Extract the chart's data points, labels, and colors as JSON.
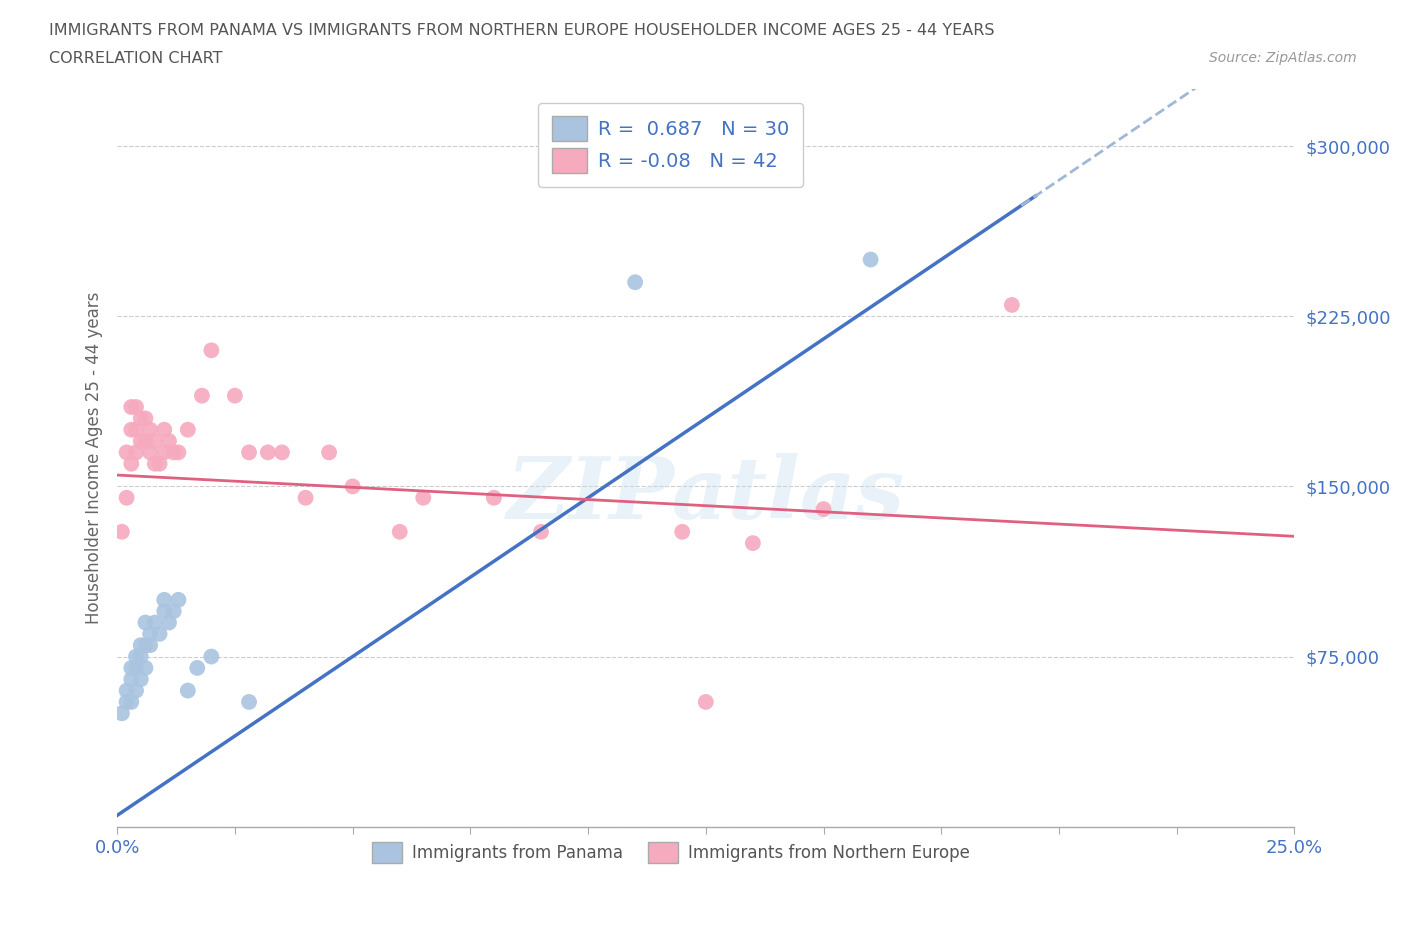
{
  "title_line1": "IMMIGRANTS FROM PANAMA VS IMMIGRANTS FROM NORTHERN EUROPE HOUSEHOLDER INCOME AGES 25 - 44 YEARS",
  "title_line2": "CORRELATION CHART",
  "source_text": "Source: ZipAtlas.com",
  "ylabel": "Householder Income Ages 25 - 44 years",
  "xlim": [
    0.0,
    0.25
  ],
  "ylim": [
    0,
    325000
  ],
  "yticks": [
    0,
    75000,
    150000,
    225000,
    300000
  ],
  "ytick_labels": [
    "",
    "$75,000",
    "$150,000",
    "$225,000",
    "$300,000"
  ],
  "xticks": [
    0.0,
    0.025,
    0.05,
    0.075,
    0.1,
    0.125,
    0.15,
    0.175,
    0.2,
    0.225,
    0.25
  ],
  "xtick_labels": [
    "0.0%",
    "",
    "",
    "",
    "",
    "",
    "",
    "",
    "",
    "",
    "25.0%"
  ],
  "color_panama": "#aac4e0",
  "color_north_europe": "#f5aabe",
  "color_panama_line": "#4472c4",
  "color_north_europe_line": "#e06080",
  "color_trend_ext": "#a0b8d8",
  "R_panama": 0.687,
  "N_panama": 30,
  "R_north_europe": -0.08,
  "N_north_europe": 42,
  "panama_x": [
    0.001,
    0.002,
    0.002,
    0.003,
    0.003,
    0.003,
    0.004,
    0.004,
    0.004,
    0.005,
    0.005,
    0.005,
    0.006,
    0.006,
    0.006,
    0.007,
    0.007,
    0.008,
    0.009,
    0.01,
    0.01,
    0.011,
    0.012,
    0.013,
    0.015,
    0.017,
    0.02,
    0.028,
    0.11,
    0.16
  ],
  "panama_y": [
    50000,
    55000,
    60000,
    55000,
    65000,
    70000,
    60000,
    70000,
    75000,
    65000,
    75000,
    80000,
    70000,
    80000,
    90000,
    80000,
    85000,
    90000,
    85000,
    95000,
    100000,
    90000,
    95000,
    100000,
    60000,
    70000,
    75000,
    55000,
    240000,
    250000
  ],
  "ne_x": [
    0.001,
    0.002,
    0.002,
    0.003,
    0.003,
    0.003,
    0.004,
    0.004,
    0.004,
    0.005,
    0.005,
    0.006,
    0.006,
    0.007,
    0.007,
    0.008,
    0.008,
    0.009,
    0.01,
    0.01,
    0.011,
    0.012,
    0.013,
    0.015,
    0.018,
    0.02,
    0.025,
    0.028,
    0.032,
    0.035,
    0.04,
    0.045,
    0.05,
    0.06,
    0.065,
    0.08,
    0.09,
    0.12,
    0.135,
    0.15,
    0.19,
    0.125
  ],
  "ne_y": [
    130000,
    145000,
    165000,
    160000,
    175000,
    185000,
    165000,
    175000,
    185000,
    170000,
    180000,
    170000,
    180000,
    165000,
    175000,
    160000,
    170000,
    160000,
    165000,
    175000,
    170000,
    165000,
    165000,
    175000,
    190000,
    210000,
    190000,
    165000,
    165000,
    165000,
    145000,
    165000,
    150000,
    130000,
    145000,
    145000,
    130000,
    130000,
    125000,
    140000,
    230000,
    55000
  ],
  "watermark_text": "ZIPatlas",
  "grid_color": "#cccccc",
  "bg_color": "#ffffff",
  "legend_label_panama": "Immigrants from Panama",
  "legend_label_ne": "Immigrants from Northern Europe"
}
